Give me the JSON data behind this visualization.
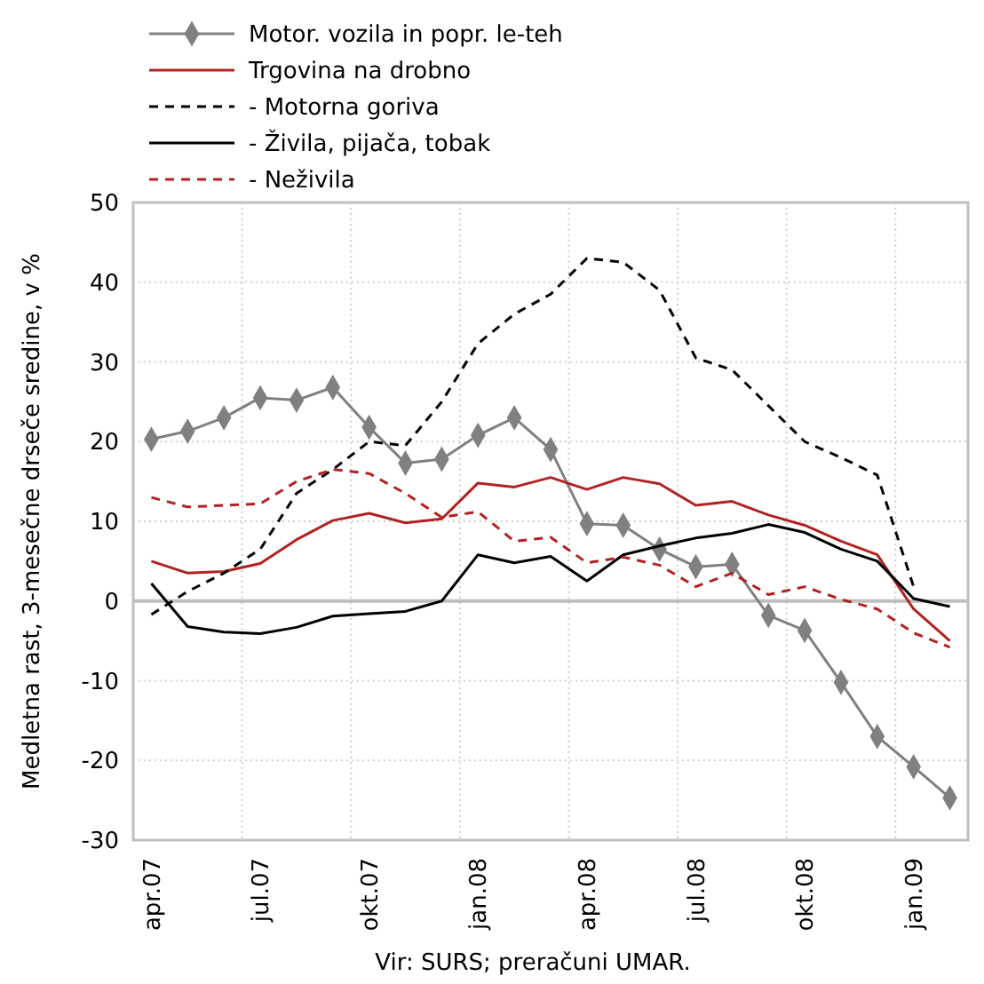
{
  "chart_data": {
    "type": "line",
    "ylabel": "Medletna rast, 3-mesečne drseče sredine, v %",
    "annotations": [
      "Vir: SURS; preračuni UMAR."
    ],
    "categories": [
      "apr.07",
      null,
      null,
      "jul.07",
      null,
      null,
      "okt.07",
      null,
      null,
      "jan.08",
      null,
      null,
      "apr.08",
      null,
      null,
      "jul.08",
      null,
      null,
      "okt.08",
      null,
      null,
      "jan.09",
      null
    ],
    "ylim": [
      -30,
      50
    ],
    "yticks": [
      -30,
      -20,
      -10,
      0,
      10,
      20,
      30,
      40,
      50
    ],
    "grid": true,
    "legend": "top left",
    "ref_lines": [
      {
        "axis": "y",
        "value": 0,
        "color": "#bfbfbf"
      }
    ],
    "series": [
      {
        "name": "Motor. vozila in popr. le-teh",
        "color": "#808080",
        "marker": "diamond",
        "line_style": "solid",
        "values": [
          20.3,
          21.3,
          23,
          25.5,
          25.2,
          26.8,
          21.8,
          17.3,
          17.8,
          20.8,
          23,
          19,
          9.7,
          9.5,
          6.5,
          4.3,
          4.6,
          -1.8,
          -3.7,
          -10.2,
          -17,
          -20.8,
          -24.7
        ]
      },
      {
        "name": "Trgovina na drobno",
        "color": "#b22222",
        "marker": "none",
        "line_style": "solid",
        "values": [
          5,
          3.5,
          3.7,
          4.7,
          7.7,
          10.1,
          11,
          9.8,
          10.3,
          14.8,
          14.3,
          15.5,
          14,
          15.5,
          14.7,
          12,
          12.5,
          10.8,
          9.5,
          7.5,
          5.8,
          -1,
          -5
        ]
      },
      {
        "name": "- Motorna goriva",
        "color": "#000000",
        "marker": "none",
        "line_style": "dashed",
        "values": [
          -1.7,
          1.2,
          3.5,
          6.5,
          13.5,
          16.5,
          20,
          19.5,
          25,
          32.3,
          36,
          38.5,
          43,
          42.5,
          39,
          30.5,
          29,
          24.5,
          20,
          18,
          15.8,
          1.8,
          null
        ]
      },
      {
        "name": "- Živila, pijača, tobak",
        "color": "#000000",
        "marker": "none",
        "line_style": "solid",
        "values": [
          2.2,
          -3.2,
          -3.9,
          -4.1,
          -3.3,
          -1.9,
          -1.6,
          -1.3,
          0,
          5.8,
          4.8,
          5.6,
          2.5,
          5.8,
          6.9,
          7.9,
          8.5,
          9.6,
          8.6,
          6.5,
          5,
          0.3,
          -0.7
        ]
      },
      {
        "name": "- Neživila",
        "color": "#b22222",
        "marker": "none",
        "line_style": "dashed",
        "values": [
          13,
          11.8,
          12,
          12.2,
          15,
          16.5,
          16,
          13.5,
          10.5,
          11.2,
          7.5,
          8,
          4.8,
          5.5,
          4.5,
          1.8,
          3.5,
          0.8,
          1.8,
          0.2,
          -1,
          -4,
          -5.8
        ]
      }
    ]
  }
}
